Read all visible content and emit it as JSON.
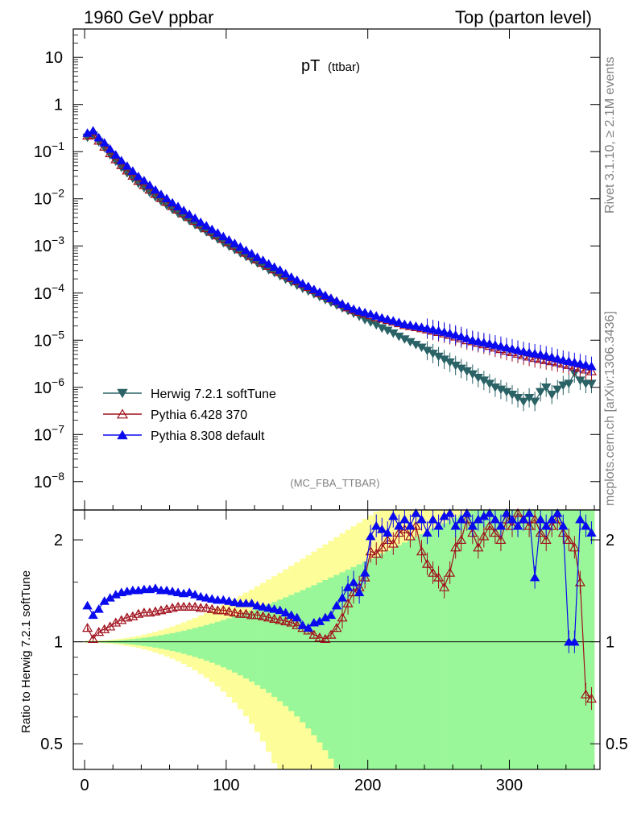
{
  "header": {
    "left": "1960 GeV ppbar",
    "right": "Top (parton level)"
  },
  "plot_title": {
    "main": "pT",
    "sub": "(ttbar)"
  },
  "analysis_tag": "(MC_FBA_TTBAR)",
  "side_labels": {
    "rivet": "Rivet 3.1.10, ≥ 2.1M events",
    "mcplots": "mcplots.cern.ch [arXiv:1306.3436]"
  },
  "ratio_ylabel": "Ratio to Herwig 7.2.1 softTune",
  "colors": {
    "herwig": "#2a6266",
    "pythia6": "#a0101c",
    "pythia8": "#0a0aee",
    "band_inner": "#99f799",
    "band_outer": "#fdfd99"
  },
  "chart_data": [
    {
      "type": "line",
      "title": "pT (ttbar)",
      "xlabel": "",
      "ylabel": "",
      "yscale": "log",
      "xlim": [
        -8,
        364
      ],
      "ylim": [
        2.5e-09,
        40
      ],
      "xticks": [
        0,
        100,
        200,
        300
      ],
      "yticks": [
        {
          "v": 10,
          "label": "10"
        },
        {
          "v": 1,
          "label": "1"
        },
        {
          "v": 0.1,
          "label": "10^-1"
        },
        {
          "v": 0.01,
          "label": "10^-2"
        },
        {
          "v": 0.001,
          "label": "10^-3"
        },
        {
          "v": 0.0001,
          "label": "10^-4"
        },
        {
          "v": 1e-05,
          "label": "10^-5"
        },
        {
          "v": 1e-06,
          "label": "10^-6"
        },
        {
          "v": 1e-07,
          "label": "10^-7"
        },
        {
          "v": 1e-08,
          "label": "10^-8"
        }
      ],
      "legend_position": "bottom-left",
      "series": [
        {
          "name": "Herwig 7.2.1 softTune",
          "marker": "triangle-down",
          "key": "herwig",
          "x": [
            2,
            6,
            10,
            14,
            18,
            22,
            26,
            30,
            34,
            38,
            42,
            46,
            50,
            54,
            58,
            62,
            66,
            70,
            74,
            78,
            82,
            86,
            90,
            94,
            98,
            102,
            106,
            110,
            114,
            118,
            122,
            126,
            130,
            134,
            138,
            142,
            146,
            150,
            154,
            158,
            162,
            166,
            170,
            174,
            178,
            182,
            186,
            190,
            194,
            198,
            202,
            206,
            210,
            214,
            218,
            222,
            226,
            230,
            234,
            238,
            242,
            246,
            250,
            254,
            258,
            262,
            266,
            270,
            274,
            278,
            282,
            286,
            290,
            294,
            298,
            302,
            306,
            310,
            314,
            318,
            322,
            326,
            330,
            334,
            338,
            342,
            346,
            350,
            354,
            358
          ],
          "y": [
            0.2,
            0.22,
            0.16,
            0.12,
            0.085,
            0.062,
            0.046,
            0.035,
            0.027,
            0.021,
            0.017,
            0.0135,
            0.0108,
            0.0088,
            0.0072,
            0.0059,
            0.0049,
            0.0041,
            0.0034,
            0.0028,
            0.00235,
            0.00197,
            0.00165,
            0.00138,
            0.00116,
            0.00098,
            0.00083,
            0.0007,
            0.00059,
            0.0005,
            0.00043,
            0.00037,
            0.00031,
            0.00027,
            0.00023,
            0.000195,
            0.00017,
            0.000145,
            0.000125,
            0.00011,
            9.5e-05,
            8.3e-05,
            7.2e-05,
            6.3e-05,
            5.5e-05,
            4.8e-05,
            4.2e-05,
            3.7e-05,
            3.2e-05,
            2.7e-05,
            2.4e-05,
            2.1e-05,
            1.8e-05,
            1.6e-05,
            1.4e-05,
            1.2e-05,
            1.05e-05,
            9.2e-06,
            8e-06,
            7e-06,
            6e-06,
            5.2e-06,
            4.5e-06,
            3.9e-06,
            3.4e-06,
            2.9e-06,
            2.5e-06,
            2.2e-06,
            1.9e-06,
            1.6e-06,
            1.4e-06,
            1.2e-06,
            1e-06,
            9e-07,
            8e-07,
            7e-07,
            6e-07,
            5e-07,
            6e-07,
            5e-07,
            8e-07,
            1e-06,
            7e-07,
            9e-07,
            1.1e-06,
            1.2e-06,
            2e-06,
            1.4e-06,
            1.2e-06,
            1.2e-06
          ]
        },
        {
          "name": "Pythia 6.428 370",
          "marker": "triangle-open",
          "key": "pythia6",
          "x": [
            2,
            6,
            10,
            14,
            18,
            22,
            26,
            30,
            34,
            38,
            42,
            46,
            50,
            54,
            58,
            62,
            66,
            70,
            74,
            78,
            82,
            86,
            90,
            94,
            98,
            102,
            106,
            110,
            114,
            118,
            122,
            126,
            130,
            134,
            138,
            142,
            146,
            150,
            154,
            158,
            162,
            166,
            170,
            174,
            178,
            182,
            186,
            190,
            194,
            198,
            202,
            206,
            210,
            214,
            218,
            222,
            226,
            230,
            234,
            238,
            242,
            246,
            250,
            254,
            258,
            262,
            266,
            270,
            274,
            278,
            282,
            286,
            290,
            294,
            298,
            302,
            306,
            310,
            314,
            318,
            322,
            326,
            330,
            334,
            338,
            342,
            346,
            350,
            354,
            358
          ],
          "y": [
            0.22,
            0.225,
            0.172,
            0.128,
            0.093,
            0.069,
            0.052,
            0.04,
            0.031,
            0.024,
            0.0195,
            0.0157,
            0.0127,
            0.0104,
            0.0086,
            0.007,
            0.0059,
            0.0049,
            0.0041,
            0.0034,
            0.00285,
            0.00238,
            0.002,
            0.00168,
            0.00142,
            0.0012,
            0.00101,
            0.00085,
            0.00072,
            0.00061,
            0.00052,
            0.00044,
            0.00038,
            0.00032,
            0.00028,
            0.00024,
            0.00021,
            0.00018,
            0.000155,
            0.000135,
            0.000117,
            0.0001,
            8.8e-05,
            7.7e-05,
            6.7e-05,
            5.8e-05,
            5e-05,
            4.4e-05,
            4e-05,
            3.7e-05,
            3.4e-05,
            3.1e-05,
            2.9e-05,
            2.7e-05,
            2.5e-05,
            2.3e-05,
            2.1e-05,
            2e-05,
            1.9e-05,
            1.8e-05,
            1.7e-05,
            1.6e-05,
            1.5e-05,
            1.4e-05,
            1.3e-05,
            1.2e-05,
            1.1e-05,
            1e-05,
            9.5e-06,
            8.8e-06,
            8.2e-06,
            7.6e-06,
            7e-06,
            6.5e-06,
            6e-06,
            5.6e-06,
            5.2e-06,
            4.8e-06,
            4.5e-06,
            4.2e-06,
            4e-06,
            3.8e-06,
            3.6e-06,
            3.4e-06,
            3.2e-06,
            3e-06,
            2.8e-06,
            2.6e-06,
            2.4e-06,
            2.2e-06
          ]
        },
        {
          "name": "Pythia 8.308 default",
          "marker": "triangle-up",
          "key": "pythia8",
          "x": [
            2,
            6,
            10,
            14,
            18,
            22,
            26,
            30,
            34,
            38,
            42,
            46,
            50,
            54,
            58,
            62,
            66,
            70,
            74,
            78,
            82,
            86,
            90,
            94,
            98,
            102,
            106,
            110,
            114,
            118,
            122,
            126,
            130,
            134,
            138,
            142,
            146,
            150,
            154,
            158,
            162,
            166,
            170,
            174,
            178,
            182,
            186,
            190,
            194,
            198,
            202,
            206,
            210,
            214,
            218,
            222,
            226,
            230,
            234,
            238,
            242,
            246,
            250,
            254,
            258,
            262,
            266,
            270,
            274,
            278,
            282,
            286,
            290,
            294,
            298,
            302,
            306,
            310,
            314,
            318,
            322,
            326,
            330,
            334,
            338,
            342,
            346,
            350,
            354,
            358
          ],
          "y": [
            0.25,
            0.28,
            0.2,
            0.155,
            0.115,
            0.086,
            0.065,
            0.05,
            0.039,
            0.03,
            0.0245,
            0.0195,
            0.0155,
            0.0125,
            0.0102,
            0.0083,
            0.0069,
            0.0057,
            0.0047,
            0.0039,
            0.0032,
            0.0027,
            0.00226,
            0.0019,
            0.0016,
            0.00135,
            0.00114,
            0.00096,
            0.00081,
            0.00069,
            0.00058,
            0.0005,
            0.00042,
            0.00036,
            0.00031,
            0.00026,
            0.00022,
            0.00019,
            0.00016,
            0.00014,
            0.00012,
            0.000105,
            9e-05,
            7.8e-05,
            6.8e-05,
            5.9e-05,
            5.2e-05,
            4.6e-05,
            4.2e-05,
            3.9e-05,
            3.6e-05,
            3.3e-05,
            3e-05,
            2.8e-05,
            2.6e-05,
            2.4e-05,
            2.2e-05,
            2.1e-05,
            2e-05,
            1.9e-05,
            1.8e-05,
            1.7e-05,
            1.6e-05,
            1.5e-05,
            1.4e-05,
            1.3e-05,
            1.2e-05,
            1.1e-05,
            1e-05,
            9.5e-06,
            9e-06,
            8.5e-06,
            8e-06,
            7.5e-06,
            7e-06,
            6.6e-06,
            6.2e-06,
            5.8e-06,
            5.5e-06,
            5.2e-06,
            5e-06,
            4.7e-06,
            4.4e-06,
            4.1e-06,
            3.8e-06,
            3.6e-06,
            3.4e-06,
            3.2e-06,
            3e-06,
            2.8e-06
          ]
        }
      ]
    },
    {
      "type": "line",
      "title": "",
      "xlabel": "",
      "ylabel": "Ratio to Herwig 7.2.1 softTune",
      "yscale": "log",
      "xlim": [
        -8,
        364
      ],
      "ylim": [
        0.42,
        2.45
      ],
      "xticks": [
        0,
        100,
        200,
        300
      ],
      "yticks": [
        {
          "v": 0.5,
          "label": "0.5"
        },
        {
          "v": 1,
          "label": "1"
        },
        {
          "v": 2,
          "label": "2"
        }
      ],
      "reference_line": 1,
      "series": [
        {
          "name": "Pythia 6.428 370 / Herwig",
          "key": "pythia6",
          "x": [
            2,
            6,
            10,
            14,
            18,
            22,
            26,
            30,
            34,
            38,
            42,
            46,
            50,
            54,
            58,
            62,
            66,
            70,
            74,
            78,
            82,
            86,
            90,
            94,
            98,
            102,
            106,
            110,
            114,
            118,
            122,
            126,
            130,
            134,
            138,
            142,
            146,
            150,
            154,
            158,
            162,
            166,
            170,
            174,
            178,
            182,
            186,
            190,
            194,
            198,
            202,
            206,
            210,
            214,
            218,
            222,
            226,
            230,
            234,
            238,
            242,
            246,
            250,
            254,
            258,
            262,
            266,
            270,
            274,
            278,
            282,
            286,
            290,
            294,
            298,
            302,
            306,
            310,
            314,
            318,
            322,
            326,
            330,
            334,
            338,
            342,
            346,
            350,
            354,
            358
          ],
          "y": [
            1.1,
            1.02,
            1.07,
            1.09,
            1.11,
            1.14,
            1.16,
            1.18,
            1.19,
            1.21,
            1.22,
            1.22,
            1.23,
            1.24,
            1.25,
            1.26,
            1.27,
            1.27,
            1.27,
            1.27,
            1.26,
            1.26,
            1.25,
            1.24,
            1.24,
            1.23,
            1.22,
            1.21,
            1.21,
            1.2,
            1.2,
            1.19,
            1.18,
            1.17,
            1.16,
            1.15,
            1.14,
            1.12,
            1.1,
            1.08,
            1.05,
            1.03,
            1.02,
            1.05,
            1.1,
            1.18,
            1.3,
            1.4,
            1.45,
            1.55,
            1.85,
            1.82,
            1.9,
            2.0,
            1.95,
            2.1,
            2.15,
            2.05,
            2.2,
            1.85,
            1.7,
            1.6,
            1.55,
            1.45,
            1.6,
            1.9,
            2.0,
            2.3,
            2.1,
            1.9,
            2.05,
            2.2,
            2.1,
            2.0,
            2.3,
            2.2,
            2.4,
            2.3,
            2.2,
            2.3,
            2.1,
            2.0,
            2.2,
            2.3,
            2.1,
            2.0,
            1.9,
            1.5,
            0.7,
            0.68
          ]
        },
        {
          "name": "Pythia 8.308 default / Herwig",
          "key": "pythia8",
          "x": [
            2,
            6,
            10,
            14,
            18,
            22,
            26,
            30,
            34,
            38,
            42,
            46,
            50,
            54,
            58,
            62,
            66,
            70,
            74,
            78,
            82,
            86,
            90,
            94,
            98,
            102,
            106,
            110,
            114,
            118,
            122,
            126,
            130,
            134,
            138,
            142,
            146,
            150,
            154,
            158,
            162,
            166,
            170,
            174,
            178,
            182,
            186,
            190,
            194,
            198,
            202,
            206,
            210,
            214,
            218,
            222,
            226,
            230,
            234,
            238,
            242,
            246,
            250,
            254,
            258,
            262,
            266,
            270,
            274,
            278,
            282,
            286,
            290,
            294,
            298,
            302,
            306,
            310,
            314,
            318,
            322,
            326,
            330,
            334,
            338,
            342,
            346,
            350,
            354,
            358
          ],
          "y": [
            1.28,
            1.2,
            1.25,
            1.32,
            1.35,
            1.38,
            1.4,
            1.41,
            1.42,
            1.42,
            1.43,
            1.43,
            1.44,
            1.42,
            1.42,
            1.41,
            1.4,
            1.39,
            1.4,
            1.38,
            1.36,
            1.35,
            1.34,
            1.33,
            1.33,
            1.32,
            1.31,
            1.3,
            1.3,
            1.3,
            1.28,
            1.27,
            1.26,
            1.25,
            1.24,
            1.22,
            1.2,
            1.18,
            1.12,
            1.1,
            1.14,
            1.15,
            1.18,
            1.2,
            1.28,
            1.35,
            1.45,
            1.5,
            1.4,
            1.6,
            2.05,
            2.2,
            2.15,
            2.1,
            2.35,
            2.2,
            2.3,
            2.2,
            2.4,
            2.3,
            2.1,
            2.3,
            2.2,
            2.35,
            2.4,
            2.2,
            2.3,
            2.4,
            2.2,
            2.3,
            2.35,
            2.4,
            2.3,
            2.2,
            2.4,
            2.3,
            2.2,
            2.3,
            2.4,
            1.55,
            2.3,
            2.2,
            2.3,
            2.4,
            2.2,
            1.0,
            1.0,
            2.3,
            2.2,
            2.1
          ]
        }
      ]
    }
  ],
  "legend": [
    {
      "label": "Herwig 7.2.1 softTune",
      "key": "herwig",
      "marker": "triangle-down"
    },
    {
      "label": "Pythia 6.428 370",
      "key": "pythia6",
      "marker": "triangle-open"
    },
    {
      "label": "Pythia 8.308 default",
      "key": "pythia8",
      "marker": "triangle-up"
    }
  ]
}
